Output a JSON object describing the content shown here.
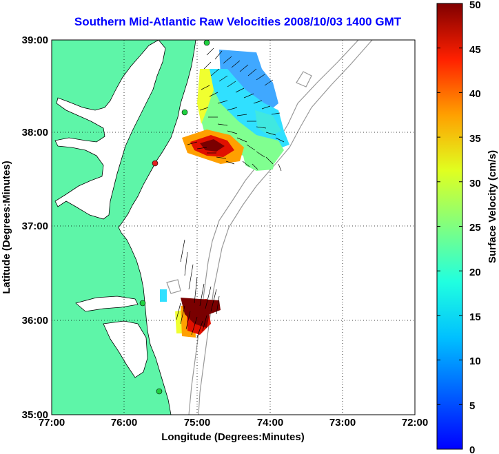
{
  "title": "Southern Mid-Atlantic Raw Velocities 2008/10/03 1400 GMT",
  "map": {
    "xlabel": "Longitude (Degrees:Minutes)",
    "ylabel": "Latitude (Degrees:Minutes)",
    "x_ticks": [
      "77:00",
      "76:00",
      "75:00",
      "74:00",
      "73:00",
      "72:00"
    ],
    "y_ticks": [
      "39:00",
      "38:00",
      "37:00",
      "36:00",
      "35:00"
    ],
    "lon_range": [
      -77,
      -72
    ],
    "lat_range": [
      35,
      39
    ],
    "grid": "dotted",
    "land_color": "#5ef5a8"
  },
  "colorbar": {
    "label": "Surface Velocity (cm/s)",
    "ticks": [
      "50",
      "45",
      "40",
      "35",
      "30",
      "25",
      "20",
      "15",
      "10",
      "5",
      "0"
    ],
    "range": [
      0,
      50
    ],
    "colormap": "jet"
  }
}
